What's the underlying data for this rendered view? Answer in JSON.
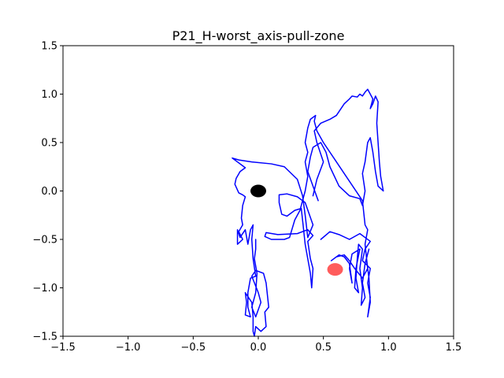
{
  "chart_data": {
    "type": "line",
    "title": "P21_H-worst_axis-pull-zone",
    "xlabel": "",
    "ylabel": "",
    "xlim": [
      -1.5,
      1.5
    ],
    "ylim": [
      -1.5,
      1.5
    ],
    "xticks": [
      -1.5,
      -1.0,
      -0.5,
      0.0,
      0.5,
      1.0,
      1.5
    ],
    "yticks": [
      -1.5,
      -1.0,
      -0.5,
      0.0,
      0.5,
      1.0,
      1.5
    ],
    "xtick_labels": [
      "−1.5",
      "−1.0",
      "−0.5",
      "0.0",
      "0.5",
      "1.0",
      "1.5"
    ],
    "ytick_labels": [
      "−1.5",
      "−1.0",
      "−0.5",
      "0.0",
      "0.5",
      "1.0",
      "1.5"
    ],
    "grid": false,
    "colors": {
      "trajectory": "#0000ff",
      "origin_marker": "#000000",
      "target_marker": "#ff3333"
    },
    "markers": [
      {
        "x": 0.0,
        "y": 0.0,
        "color": "#000000",
        "opacity": 1.0
      },
      {
        "x": 0.59,
        "y": -0.81,
        "color": "#ff3333",
        "opacity": 0.8
      }
    ],
    "series": [
      {
        "color": "#0000ff",
        "points": [
          [
            0.48,
            -0.5
          ],
          [
            0.55,
            -0.42
          ],
          [
            0.62,
            -0.45
          ],
          [
            0.7,
            -0.5
          ],
          [
            0.78,
            -0.44
          ],
          [
            0.82,
            -0.48
          ],
          [
            0.86,
            -0.52
          ],
          [
            0.82,
            -0.6
          ],
          [
            0.8,
            -0.72
          ],
          [
            0.86,
            -0.8
          ],
          [
            0.84,
            -0.95
          ],
          [
            0.86,
            -1.1
          ],
          [
            0.84,
            -1.3
          ],
          [
            0.86,
            -1.15
          ],
          [
            0.85,
            -0.9
          ],
          [
            0.83,
            -0.7
          ],
          [
            0.85,
            -0.6
          ],
          [
            0.82,
            -0.75
          ],
          [
            0.8,
            -0.95
          ],
          [
            0.82,
            -1.1
          ],
          [
            0.79,
            -1.18
          ],
          [
            0.8,
            -1.0
          ],
          [
            0.78,
            -0.8
          ],
          [
            0.8,
            -0.6
          ],
          [
            0.77,
            -0.55
          ],
          [
            0.76,
            -0.7
          ],
          [
            0.75,
            -0.9
          ],
          [
            0.77,
            -1.05
          ],
          [
            0.74,
            -1.0
          ],
          [
            0.75,
            -0.8
          ],
          [
            0.78,
            -0.6
          ],
          [
            0.72,
            -0.65
          ],
          [
            0.7,
            -0.8
          ],
          [
            0.72,
            -0.95
          ],
          [
            0.7,
            -0.75
          ],
          [
            0.66,
            -0.68
          ],
          [
            0.62,
            -0.66
          ],
          [
            0.56,
            -0.72
          ],
          [
            0.6,
            -0.68
          ],
          [
            0.66,
            -0.66
          ],
          [
            0.7,
            -0.72
          ],
          [
            0.74,
            -0.8
          ],
          [
            0.8,
            -0.9
          ],
          [
            0.84,
            -0.8
          ],
          [
            0.82,
            -0.55
          ],
          [
            0.84,
            -0.4
          ],
          [
            0.82,
            -0.35
          ],
          [
            0.8,
            -0.1
          ],
          [
            0.7,
            0.1
          ],
          [
            0.6,
            0.3
          ],
          [
            0.5,
            0.5
          ],
          [
            0.45,
            0.62
          ],
          [
            0.43,
            0.72
          ],
          [
            0.44,
            0.78
          ],
          [
            0.4,
            0.74
          ],
          [
            0.38,
            0.65
          ],
          [
            0.36,
            0.5
          ],
          [
            0.38,
            0.4
          ],
          [
            0.36,
            0.3
          ],
          [
            0.38,
            0.15
          ],
          [
            0.36,
            0.0
          ],
          [
            0.32,
            -0.2
          ],
          [
            0.28,
            -0.3
          ],
          [
            0.24,
            -0.48
          ],
          [
            0.2,
            -0.5
          ],
          [
            0.1,
            -0.5
          ],
          [
            0.05,
            -0.47
          ],
          [
            0.06,
            -0.43
          ],
          [
            0.15,
            -0.45
          ],
          [
            0.3,
            -0.44
          ],
          [
            0.38,
            -0.4
          ],
          [
            0.42,
            -0.46
          ],
          [
            0.38,
            -0.52
          ],
          [
            0.4,
            -0.7
          ],
          [
            0.42,
            -0.8
          ],
          [
            0.41,
            -1.0
          ],
          [
            0.4,
            -0.85
          ],
          [
            0.38,
            -0.7
          ],
          [
            0.36,
            -0.55
          ],
          [
            0.34,
            -0.3
          ],
          [
            0.33,
            -0.18
          ],
          [
            0.28,
            -0.2
          ],
          [
            0.22,
            -0.26
          ],
          [
            0.18,
            -0.24
          ],
          [
            0.16,
            -0.12
          ],
          [
            0.16,
            -0.04
          ],
          [
            0.22,
            -0.03
          ],
          [
            0.3,
            -0.06
          ],
          [
            0.36,
            -0.12
          ],
          [
            0.42,
            -0.35
          ],
          [
            0.38,
            -0.48
          ],
          [
            0.36,
            -0.25
          ],
          [
            0.34,
            -0.05
          ],
          [
            0.3,
            0.12
          ],
          [
            0.2,
            0.25
          ],
          [
            0.1,
            0.28
          ],
          [
            -0.05,
            0.3
          ],
          [
            -0.15,
            0.32
          ],
          [
            -0.2,
            0.34
          ],
          [
            -0.1,
            0.24
          ],
          [
            -0.14,
            0.2
          ],
          [
            -0.17,
            0.13
          ],
          [
            -0.18,
            0.07
          ],
          [
            -0.15,
            -0.02
          ],
          [
            -0.12,
            -0.04
          ],
          [
            -0.1,
            -0.06
          ],
          [
            -0.12,
            -0.15
          ],
          [
            -0.13,
            -0.28
          ],
          [
            -0.12,
            -0.35
          ],
          [
            -0.15,
            -0.42
          ],
          [
            -0.12,
            -0.5
          ],
          [
            -0.16,
            -0.55
          ],
          [
            -0.16,
            -0.4
          ],
          [
            -0.14,
            -0.48
          ],
          [
            -0.1,
            -0.4
          ],
          [
            -0.08,
            -0.55
          ],
          [
            -0.06,
            -0.4
          ],
          [
            -0.04,
            -0.35
          ],
          [
            -0.05,
            -0.5
          ],
          [
            -0.04,
            -0.7
          ],
          [
            -0.02,
            -0.88
          ],
          [
            -0.06,
            -0.9
          ],
          [
            -0.08,
            -1.05
          ],
          [
            -0.08,
            -1.2
          ],
          [
            -0.06,
            -1.3
          ],
          [
            -0.1,
            -1.28
          ],
          [
            -0.09,
            -1.15
          ],
          [
            -0.1,
            -1.05
          ],
          [
            -0.05,
            -1.15
          ],
          [
            -0.04,
            -1.3
          ],
          [
            -0.04,
            -1.45
          ],
          [
            -0.03,
            -1.5
          ],
          [
            -0.02,
            -1.4
          ],
          [
            0.02,
            -1.45
          ],
          [
            0.06,
            -1.4
          ],
          [
            0.05,
            -1.25
          ],
          [
            0.08,
            -1.2
          ],
          [
            0.06,
            -0.95
          ],
          [
            0.04,
            -0.85
          ],
          [
            -0.02,
            -0.82
          ],
          [
            -0.05,
            -0.88
          ],
          [
            0.0,
            -1.05
          ],
          [
            0.02,
            -1.15
          ],
          [
            -0.02,
            -1.3
          ],
          [
            -0.05,
            -1.2
          ],
          [
            -0.02,
            -1.05
          ],
          [
            -0.01,
            -0.85
          ],
          [
            -0.03,
            -0.7
          ],
          [
            -0.02,
            -0.6
          ],
          [
            -0.02,
            -0.5
          ]
        ]
      },
      {
        "color": "#0000ff",
        "points": [
          [
            0.42,
            -0.05
          ],
          [
            0.45,
            0.12
          ],
          [
            0.5,
            0.3
          ],
          [
            0.45,
            0.5
          ],
          [
            0.43,
            0.62
          ],
          [
            0.48,
            0.7
          ],
          [
            0.55,
            0.74
          ],
          [
            0.6,
            0.78
          ],
          [
            0.66,
            0.9
          ],
          [
            0.7,
            0.95
          ],
          [
            0.72,
            0.98
          ],
          [
            0.76,
            0.97
          ],
          [
            0.78,
            1.0
          ],
          [
            0.8,
            0.98
          ],
          [
            0.82,
            1.02
          ],
          [
            0.84,
            1.05
          ],
          [
            0.86,
            1.0
          ],
          [
            0.88,
            0.95
          ],
          [
            0.86,
            0.85
          ],
          [
            0.88,
            0.9
          ],
          [
            0.9,
            0.98
          ],
          [
            0.92,
            0.92
          ],
          [
            0.91,
            0.7
          ],
          [
            0.92,
            0.5
          ],
          [
            0.93,
            0.3
          ],
          [
            0.94,
            0.15
          ],
          [
            0.96,
            0.0
          ],
          [
            0.92,
            0.05
          ],
          [
            0.9,
            0.2
          ],
          [
            0.88,
            0.4
          ],
          [
            0.86,
            0.55
          ],
          [
            0.84,
            0.5
          ],
          [
            0.82,
            0.3
          ],
          [
            0.8,
            0.18
          ],
          [
            0.82,
            0.0
          ],
          [
            0.8,
            -0.15
          ],
          [
            0.78,
            -0.08
          ],
          [
            0.7,
            -0.05
          ],
          [
            0.62,
            0.05
          ],
          [
            0.55,
            0.25
          ],
          [
            0.52,
            0.4
          ],
          [
            0.48,
            0.5
          ],
          [
            0.42,
            0.45
          ],
          [
            0.4,
            0.35
          ],
          [
            0.38,
            0.2
          ],
          [
            0.42,
            0.05
          ],
          [
            0.46,
            -0.1
          ]
        ]
      }
    ]
  }
}
